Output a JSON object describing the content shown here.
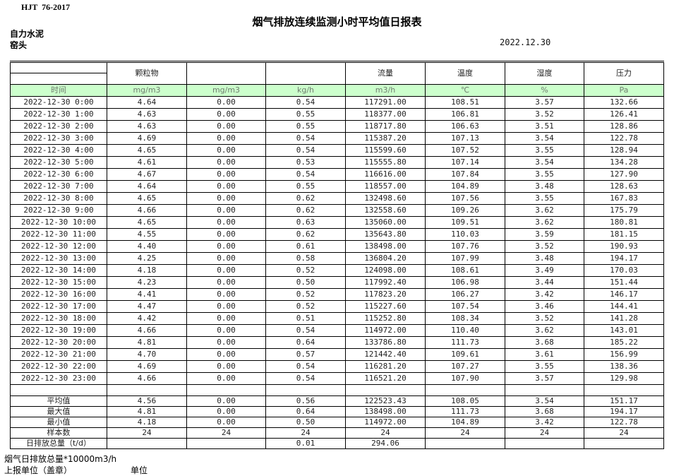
{
  "page": {
    "standard": "HJT  76-2017",
    "title": "烟气排放连续监测小时平均值日报表",
    "company": "自力水泥",
    "location": "窑头",
    "date": "2022.12.30"
  },
  "table": {
    "group_headers": [
      "",
      "颗粒物",
      "",
      "",
      "流量",
      "温度",
      "湿度",
      "压力"
    ],
    "units": [
      "时间",
      "mg/m3",
      "mg/m3",
      "kg/h",
      "m3/h",
      "℃",
      "%",
      "Pa"
    ],
    "rows": [
      [
        "2022-12-30 0:00",
        "4.64",
        "0.00",
        "0.54",
        "117291.00",
        "108.51",
        "3.57",
        "132.66"
      ],
      [
        "2022-12-30 1:00",
        "4.63",
        "0.00",
        "0.55",
        "118377.00",
        "106.81",
        "3.52",
        "126.41"
      ],
      [
        "2022-12-30 2:00",
        "4.63",
        "0.00",
        "0.55",
        "118717.80",
        "106.63",
        "3.51",
        "128.86"
      ],
      [
        "2022-12-30 3:00",
        "4.69",
        "0.00",
        "0.54",
        "115387.20",
        "107.13",
        "3.54",
        "122.78"
      ],
      [
        "2022-12-30 4:00",
        "4.65",
        "0.00",
        "0.54",
        "115599.60",
        "107.52",
        "3.55",
        "128.94"
      ],
      [
        "2022-12-30 5:00",
        "4.61",
        "0.00",
        "0.53",
        "115555.80",
        "107.14",
        "3.54",
        "134.28"
      ],
      [
        "2022-12-30 6:00",
        "4.67",
        "0.00",
        "0.54",
        "116616.00",
        "107.84",
        "3.55",
        "127.90"
      ],
      [
        "2022-12-30 7:00",
        "4.64",
        "0.00",
        "0.55",
        "118557.00",
        "104.89",
        "3.48",
        "128.63"
      ],
      [
        "2022-12-30 8:00",
        "4.65",
        "0.00",
        "0.62",
        "132498.60",
        "107.56",
        "3.55",
        "167.83"
      ],
      [
        "2022-12-30 9:00",
        "4.66",
        "0.00",
        "0.62",
        "132558.60",
        "109.26",
        "3.62",
        "175.79"
      ],
      [
        "2022-12-30 10:00",
        "4.65",
        "0.00",
        "0.63",
        "135060.00",
        "109.51",
        "3.62",
        "180.81"
      ],
      [
        "2022-12-30 11:00",
        "4.55",
        "0.00",
        "0.62",
        "135643.80",
        "110.03",
        "3.59",
        "181.15"
      ],
      [
        "2022-12-30 12:00",
        "4.40",
        "0.00",
        "0.61",
        "138498.00",
        "107.76",
        "3.52",
        "190.93"
      ],
      [
        "2022-12-30 13:00",
        "4.25",
        "0.00",
        "0.58",
        "136804.20",
        "107.99",
        "3.48",
        "194.17"
      ],
      [
        "2022-12-30 14:00",
        "4.18",
        "0.00",
        "0.52",
        "124098.00",
        "108.61",
        "3.49",
        "170.03"
      ],
      [
        "2022-12-30 15:00",
        "4.23",
        "0.00",
        "0.50",
        "117992.40",
        "106.98",
        "3.44",
        "151.44"
      ],
      [
        "2022-12-30 16:00",
        "4.41",
        "0.00",
        "0.52",
        "117823.20",
        "106.27",
        "3.42",
        "146.17"
      ],
      [
        "2022-12-30 17:00",
        "4.47",
        "0.00",
        "0.52",
        "115227.60",
        "107.54",
        "3.46",
        "144.41"
      ],
      [
        "2022-12-30 18:00",
        "4.42",
        "0.00",
        "0.51",
        "115252.80",
        "108.34",
        "3.52",
        "141.28"
      ],
      [
        "2022-12-30 19:00",
        "4.66",
        "0.00",
        "0.54",
        "114972.00",
        "110.40",
        "3.62",
        "143.01"
      ],
      [
        "2022-12-30 20:00",
        "4.81",
        "0.00",
        "0.64",
        "133786.80",
        "111.73",
        "3.68",
        "185.22"
      ],
      [
        "2022-12-30 21:00",
        "4.70",
        "0.00",
        "0.57",
        "121442.40",
        "109.61",
        "3.61",
        "156.99"
      ],
      [
        "2022-12-30 22:00",
        "4.69",
        "0.00",
        "0.54",
        "116281.20",
        "107.27",
        "3.55",
        "138.36"
      ],
      [
        "2022-12-30 23:00",
        "4.66",
        "0.00",
        "0.54",
        "116521.20",
        "107.90",
        "3.57",
        "129.98"
      ]
    ],
    "summary": [
      [
        "平均值",
        "4.56",
        "0.00",
        "0.56",
        "122523.43",
        "108.05",
        "3.54",
        "151.17"
      ],
      [
        "最大值",
        "4.81",
        "0.00",
        "0.64",
        "138498.00",
        "111.73",
        "3.68",
        "194.17"
      ],
      [
        "最小值",
        "4.18",
        "0.00",
        "0.50",
        "114972.00",
        "104.89",
        "3.42",
        "122.78"
      ],
      [
        "样本数",
        "24",
        "24",
        "24",
        "24",
        "24",
        "24",
        "24"
      ],
      [
        "日排放总量（t/d）",
        "",
        "",
        "0.01",
        "294.06",
        "",
        "",
        ""
      ]
    ]
  },
  "footer": {
    "note": "烟气日排放总量*10000m3/h",
    "report_unit_label": "上报单位（盖章）",
    "unit_label": "单位"
  },
  "colors": {
    "unit_row_bg": "#ccffcc",
    "border": "#000000",
    "text": "#1f1f1f"
  }
}
